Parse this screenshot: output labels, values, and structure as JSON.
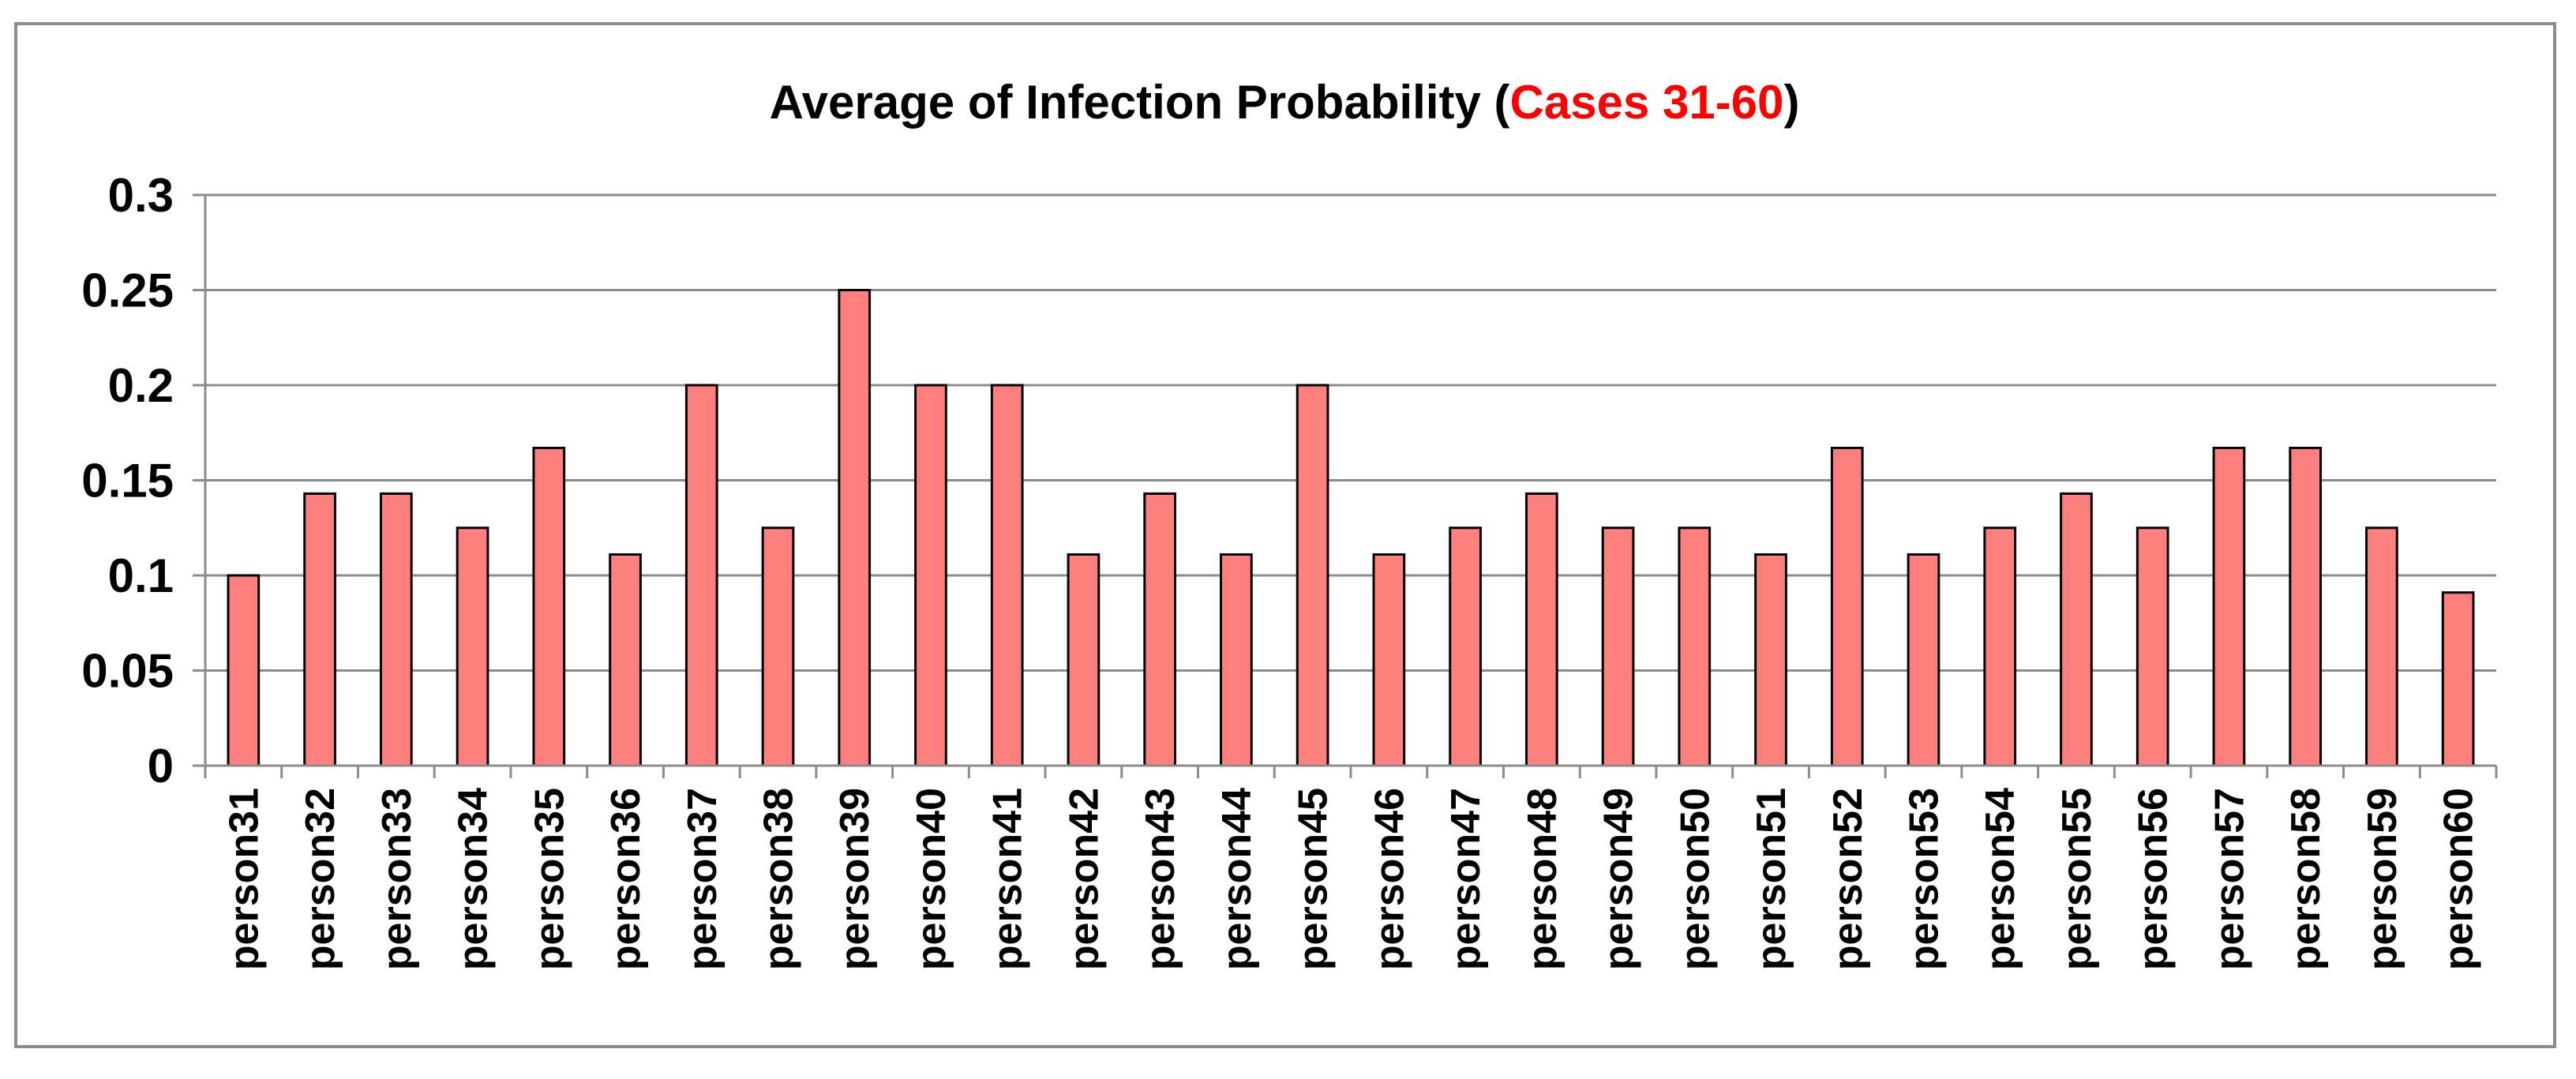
{
  "chart_data": {
    "type": "bar",
    "title": "Average of Infection Probability (Cases 31-60)",
    "title_parts": {
      "prefix": "Average of Infection Probability (",
      "highlight": "Cases 31-60",
      "suffix": ")"
    },
    "xlabel": "",
    "ylabel": "",
    "ylim": [
      0,
      0.3
    ],
    "y_ticks": [
      "0",
      "0.05",
      "0.1",
      "0.15",
      "0.2",
      "0.25",
      "0.3"
    ],
    "y_tick_values": [
      0,
      0.05,
      0.1,
      0.15,
      0.2,
      0.25,
      0.3
    ],
    "grid": true,
    "legend": "none",
    "categories": [
      "person31",
      "person32",
      "person33",
      "person34",
      "person35",
      "person36",
      "person37",
      "person38",
      "person39",
      "person40",
      "person41",
      "person42",
      "person43",
      "person44",
      "person45",
      "person46",
      "person47",
      "person48",
      "person49",
      "person50",
      "person51",
      "person52",
      "person53",
      "person54",
      "person55",
      "person56",
      "person57",
      "person58",
      "person59",
      "person60"
    ],
    "values": [
      0.1,
      0.143,
      0.143,
      0.125,
      0.167,
      0.111,
      0.2,
      0.125,
      0.25,
      0.2,
      0.2,
      0.111,
      0.143,
      0.111,
      0.2,
      0.111,
      0.125,
      0.143,
      0.125,
      0.125,
      0.111,
      0.167,
      0.111,
      0.125,
      0.143,
      0.125,
      0.167,
      0.167,
      0.125,
      0.091
    ],
    "colors": {
      "bar_fill": "#ff7f7f",
      "bar_stroke": "#000000",
      "title_highlight": "#ff0000",
      "grid": "#8c8c8c",
      "axis": "#8c8c8c"
    }
  }
}
